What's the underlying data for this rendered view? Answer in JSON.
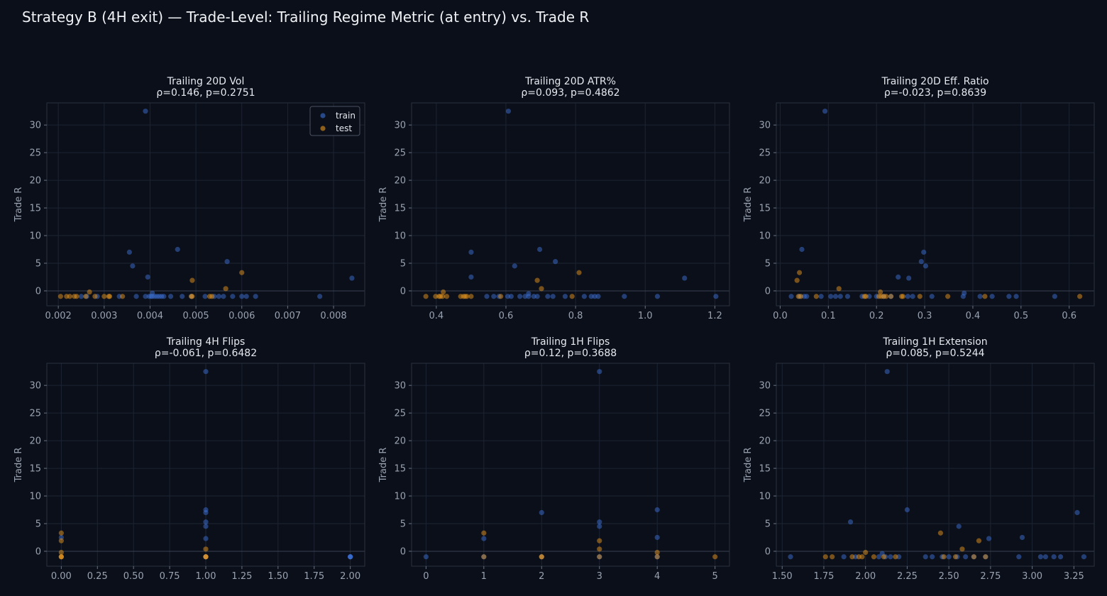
{
  "title": "Strategy B (4H exit) — Trade-Level: Trailing Regime Metric (at entry) vs. Trade R",
  "colors": {
    "background": "#0b0f19",
    "panel": "#0b0f19",
    "grid": "#1c2434",
    "zero_line": "#3a4252",
    "text": "#e6e9ef",
    "tick_text": "#9aa3b2",
    "train": "#3b6fd4",
    "test": "#e8961e"
  },
  "legend": {
    "train_label": "train",
    "test_label": "test",
    "placement": "upper right (first panel)"
  },
  "chart_data": [
    {
      "type": "scatter",
      "title": "Trailing 20D Vol",
      "subtitle": "ρ=0.146, p=0.2751",
      "xlabel": "",
      "ylabel": "Trade R",
      "xlim": [
        0.00175,
        0.00868
      ],
      "ylim": [
        -2.7,
        34
      ],
      "xticks": [
        0.002,
        0.003,
        0.004,
        0.005,
        0.006,
        0.007,
        0.008
      ],
      "xtick_labels": [
        "0.002",
        "0.003",
        "0.004",
        "0.005",
        "0.006",
        "0.007",
        "0.008"
      ],
      "yticks": [
        0,
        5,
        10,
        15,
        20,
        25,
        30
      ],
      "ytick_labels": [
        "0",
        "5",
        "10",
        "15",
        "20",
        "25",
        "30"
      ],
      "grid": true,
      "series": [
        {
          "name": "train",
          "x": [
            0.0039,
            0.00355,
            0.00362,
            0.0046,
            0.00568,
            0.00395,
            0.0084,
            0.0025,
            0.00262,
            0.00285,
            0.00333,
            0.0037,
            0.0039,
            0.00398,
            0.00402,
            0.00405,
            0.0041,
            0.00415,
            0.0042,
            0.00425,
            0.0043,
            0.00445,
            0.0047,
            0.0049,
            0.0052,
            0.0054,
            0.0055,
            0.0056,
            0.0058,
            0.006,
            0.0061,
            0.0063,
            0.0077,
            0.00405
          ],
          "y": [
            32.5,
            7.0,
            4.5,
            7.5,
            5.3,
            2.5,
            2.3,
            -1,
            -1,
            -1,
            -1,
            -1,
            -1,
            -1,
            -1,
            -1,
            -1,
            -1,
            -1,
            -1,
            -1,
            -1,
            -1,
            -1,
            -1,
            -1,
            -1,
            -1,
            -1,
            -1,
            -1,
            -1,
            -1,
            -0.4
          ]
        },
        {
          "name": "test",
          "x": [
            0.00205,
            0.00218,
            0.00225,
            0.00235,
            0.0024,
            0.0026,
            0.00268,
            0.0028,
            0.003,
            0.0031,
            0.00312,
            0.0034,
            0.0049,
            0.00492,
            0.0053,
            0.00535,
            0.00565,
            0.00492,
            0.006
          ],
          "y": [
            -1,
            -1,
            -1,
            -1,
            -1,
            -1,
            -0.2,
            -1,
            -1,
            -1,
            -1,
            -1,
            -1,
            1.9,
            -1,
            -1,
            0.4,
            -1,
            3.3
          ]
        }
      ]
    },
    {
      "type": "scatter",
      "title": "Trailing 20D ATR%",
      "subtitle": "ρ=0.093, p=0.4862",
      "xlabel": "",
      "ylabel": "Trade R",
      "xlim": [
        0.329,
        1.242
      ],
      "ylim": [
        -2.7,
        34
      ],
      "xticks": [
        0.4,
        0.6,
        0.8,
        1.0,
        1.2
      ],
      "xtick_labels": [
        "0.4",
        "0.6",
        "0.8",
        "1.0",
        "1.2"
      ],
      "yticks": [
        0,
        5,
        10,
        15,
        20,
        25,
        30
      ],
      "ytick_labels": [
        "0",
        "5",
        "10",
        "15",
        "20",
        "25",
        "30"
      ],
      "grid": true,
      "series": [
        {
          "name": "train",
          "x": [
            0.607,
            0.5,
            0.625,
            0.697,
            0.742,
            0.5,
            1.113,
            0.545,
            0.565,
            0.58,
            0.605,
            0.615,
            0.64,
            0.655,
            0.665,
            0.68,
            0.72,
            0.735,
            0.77,
            0.825,
            0.845,
            0.855,
            0.865,
            0.94,
            1.035,
            1.203,
            0.665,
            0.69
          ],
          "y": [
            32.5,
            7.0,
            4.5,
            7.5,
            5.3,
            2.5,
            2.3,
            -1,
            -1,
            -1,
            -1,
            -1,
            -1,
            -1,
            -1,
            -1,
            -1,
            -1,
            -1,
            -1,
            -1,
            -1,
            -1,
            -1,
            -1,
            -1,
            -0.5,
            -1
          ]
        },
        {
          "name": "test",
          "x": [
            0.37,
            0.398,
            0.408,
            0.412,
            0.418,
            0.43,
            0.47,
            0.478,
            0.483,
            0.488,
            0.5,
            0.585,
            0.69,
            0.702,
            0.79,
            0.81,
            0.42
          ],
          "y": [
            -1,
            -1,
            -1,
            -1,
            -1,
            -1,
            -1,
            -1,
            -1,
            -1,
            -1,
            -1,
            1.9,
            0.4,
            -1,
            3.3,
            -0.2
          ]
        }
      ]
    },
    {
      "type": "scatter",
      "title": "Trailing 20D Eff. Ratio",
      "subtitle": "ρ=-0.023, p=0.8639",
      "xlabel": "",
      "ylabel": "Trade R",
      "xlim": [
        -0.008,
        0.652
      ],
      "ylim": [
        -2.7,
        34
      ],
      "xticks": [
        0.0,
        0.1,
        0.2,
        0.3,
        0.4,
        0.5,
        0.6
      ],
      "xtick_labels": [
        "0.0",
        "0.1",
        "0.2",
        "0.3",
        "0.4",
        "0.5",
        "0.6"
      ],
      "yticks": [
        0,
        5,
        10,
        15,
        20,
        25,
        30
      ],
      "ytick_labels": [
        "0",
        "5",
        "10",
        "15",
        "20",
        "25",
        "30"
      ],
      "grid": true,
      "series": [
        {
          "name": "train",
          "x": [
            0.093,
            0.045,
            0.298,
            0.293,
            0.302,
            0.245,
            0.267,
            0.023,
            0.04,
            0.05,
            0.055,
            0.085,
            0.105,
            0.115,
            0.125,
            0.14,
            0.17,
            0.185,
            0.2,
            0.215,
            0.23,
            0.265,
            0.275,
            0.315,
            0.38,
            0.415,
            0.44,
            0.475,
            0.49,
            0.57,
            0.382
          ],
          "y": [
            32.5,
            7.5,
            7.0,
            5.3,
            4.5,
            2.5,
            2.3,
            -1,
            -1,
            -1,
            -1,
            -1,
            -1,
            -1,
            -1,
            -1,
            -1,
            -1,
            -1,
            -1,
            -1,
            -1,
            -1,
            -1,
            -1,
            -1,
            -1,
            -1,
            -1,
            -1,
            -0.4
          ]
        },
        {
          "name": "test",
          "x": [
            0.035,
            0.038,
            0.04,
            0.043,
            0.075,
            0.122,
            0.175,
            0.178,
            0.205,
            0.21,
            0.215,
            0.22,
            0.23,
            0.252,
            0.255,
            0.29,
            0.348,
            0.425,
            0.622,
            0.208
          ],
          "y": [
            1.9,
            -1,
            3.3,
            -1,
            -1,
            0.4,
            -1,
            -1,
            -1,
            -1,
            -1,
            -1,
            -1,
            -1,
            -1,
            -1,
            -1,
            -1,
            -1,
            -0.2
          ]
        }
      ]
    },
    {
      "type": "scatter",
      "title": "Trailing 4H Flips",
      "subtitle": "ρ=-0.061, p=0.6482",
      "xlabel": "",
      "ylabel": "Trade R",
      "xlim": [
        -0.1,
        2.1
      ],
      "ylim": [
        -2.7,
        34
      ],
      "xticks": [
        0.0,
        0.25,
        0.5,
        0.75,
        1.0,
        1.25,
        1.5,
        1.75,
        2.0
      ],
      "xtick_labels": [
        "0.00",
        "0.25",
        "0.50",
        "0.75",
        "1.00",
        "1.25",
        "1.50",
        "1.75",
        "2.00"
      ],
      "yticks": [
        0,
        5,
        10,
        15,
        20,
        25,
        30
      ],
      "ytick_labels": [
        "0",
        "5",
        "10",
        "15",
        "20",
        "25",
        "30"
      ],
      "grid": true,
      "series": [
        {
          "name": "train",
          "x": [
            1,
            1,
            1,
            1,
            1,
            1,
            1,
            1,
            1,
            2,
            2,
            2,
            2,
            0
          ],
          "y": [
            32.5,
            7.5,
            7.0,
            5.3,
            4.5,
            2.3,
            -1,
            -1,
            -1,
            -1,
            -1,
            -1,
            -1,
            2.5
          ]
        },
        {
          "name": "test",
          "x": [
            0,
            0,
            0,
            0,
            0,
            0,
            1,
            1,
            1,
            1
          ],
          "y": [
            3.3,
            1.9,
            -0.2,
            -1,
            -1,
            -1,
            0.4,
            -1,
            -1,
            -1
          ]
        }
      ]
    },
    {
      "type": "scatter",
      "title": "Trailing 1H Flips",
      "subtitle": "ρ=0.12, p=0.3688",
      "xlabel": "",
      "ylabel": "Trade R",
      "xlim": [
        -0.25,
        5.25
      ],
      "ylim": [
        -2.7,
        34
      ],
      "xticks": [
        0,
        1,
        2,
        3,
        4,
        5
      ],
      "xtick_labels": [
        "0",
        "1",
        "2",
        "3",
        "4",
        "5"
      ],
      "yticks": [
        0,
        5,
        10,
        15,
        20,
        25,
        30
      ],
      "ytick_labels": [
        "0",
        "5",
        "10",
        "15",
        "20",
        "25",
        "30"
      ],
      "grid": true,
      "series": [
        {
          "name": "train",
          "x": [
            3,
            2,
            3,
            3,
            4,
            4,
            1,
            0,
            1,
            2,
            3,
            4
          ],
          "y": [
            32.5,
            7.0,
            5.3,
            4.5,
            7.5,
            2.5,
            2.3,
            -1,
            -1,
            -1,
            -1,
            -1
          ]
        },
        {
          "name": "test",
          "x": [
            1,
            1,
            2,
            2,
            3,
            3,
            3,
            4,
            4,
            5
          ],
          "y": [
            3.3,
            -1,
            -1,
            -1,
            1.9,
            0.4,
            -1,
            -0.2,
            -1,
            -1
          ]
        }
      ]
    },
    {
      "type": "scatter",
      "title": "Trailing 1H Extension",
      "subtitle": "ρ=0.085, p=0.5244",
      "xlabel": "",
      "ylabel": "Trade R",
      "xlim": [
        1.465,
        3.372
      ],
      "ylim": [
        -2.7,
        34
      ],
      "xticks": [
        1.5,
        1.75,
        2.0,
        2.25,
        2.5,
        2.75,
        3.0,
        3.25
      ],
      "xtick_labels": [
        "1.50",
        "1.75",
        "2.00",
        "2.25",
        "2.50",
        "2.75",
        "3.00",
        "3.25"
      ],
      "yticks": [
        0,
        5,
        10,
        15,
        20,
        25,
        30
      ],
      "ytick_labels": [
        "0",
        "5",
        "10",
        "15",
        "20",
        "25",
        "30"
      ],
      "grid": true,
      "series": [
        {
          "name": "train",
          "x": [
            2.13,
            2.25,
            3.27,
            1.91,
            2.56,
            2.94,
            2.74,
            1.55,
            1.87,
            1.94,
            2.08,
            2.12,
            2.15,
            2.2,
            2.36,
            2.4,
            2.46,
            2.5,
            2.55,
            2.6,
            2.65,
            2.72,
            2.92,
            3.05,
            3.08,
            3.13,
            3.17,
            3.31,
            2.1
          ],
          "y": [
            32.5,
            7.5,
            7.0,
            5.3,
            4.5,
            2.5,
            2.3,
            -1,
            -1,
            -1,
            -1,
            -1,
            -1,
            -1,
            -1,
            -1,
            -1,
            -1,
            -1,
            -1,
            -1,
            -1,
            -1,
            -1,
            -1,
            -1,
            -1,
            -1,
            -0.4
          ]
        },
        {
          "name": "test",
          "x": [
            1.76,
            1.8,
            1.92,
            1.96,
            1.98,
            2.0,
            2.05,
            2.11,
            2.18,
            2.45,
            2.47,
            2.54,
            2.58,
            2.65,
            2.68,
            2.72
          ],
          "y": [
            -1,
            -1,
            -1,
            -1,
            -1,
            -0.2,
            -1,
            -1,
            -1,
            3.3,
            -1,
            -1,
            0.4,
            -1,
            1.9,
            -1
          ]
        }
      ]
    }
  ]
}
